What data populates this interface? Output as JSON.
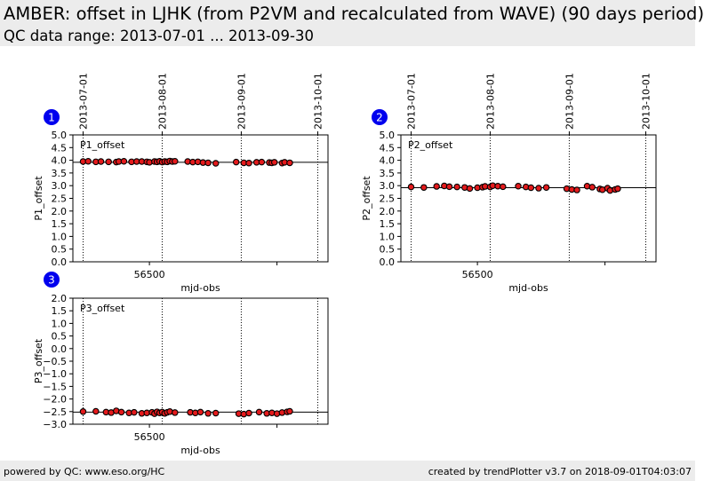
{
  "header": {
    "title": "AMBER: offset in LJHK (from P2VM and recalculated from WAVE) (90 days period)",
    "subtitle": "QC data range: 2013-07-01 ... 2013-09-30"
  },
  "footer": {
    "left": "powered by QC: www.eso.org/HC",
    "right": "created by trendPlotter v3.7 on 2018-09-01T04:03:07"
  },
  "colors": {
    "marker_fill": "#e41a1c",
    "marker_edge": "#000000",
    "badge": "#0000ee",
    "header_bg": "#ececec"
  },
  "chart_data": [
    {
      "type": "scatter",
      "panel_number": "1",
      "label": "P1_offset",
      "xlabel": "mjd-obs",
      "ylabel": "P1_offset",
      "xlim": [
        56470,
        56570
      ],
      "ylim": [
        0.0,
        5.0
      ],
      "yticks": [
        "0.0",
        "0.5",
        "1.0",
        "1.5",
        "2.0",
        "2.5",
        "3.0",
        "3.5",
        "4.0",
        "4.5",
        "5.0"
      ],
      "xtick_labels": [
        "56500"
      ],
      "date_ticks": [
        "2013-07-01",
        "2013-08-01",
        "2013-09-01",
        "2013-10-01"
      ],
      "reference_line": 3.92,
      "x": [
        56474,
        56476,
        56479,
        56481,
        56484,
        56487,
        56488,
        56490,
        56493,
        56495,
        56497,
        56499,
        56500,
        56502,
        56503,
        56504,
        56505,
        56506,
        56507,
        56508,
        56509,
        56510,
        56515,
        56517,
        56519,
        56521,
        56523,
        56526,
        56534,
        56537,
        56539,
        56542,
        56544,
        56547,
        56548,
        56549,
        56552,
        56553,
        56555
      ],
      "y": [
        3.95,
        3.96,
        3.94,
        3.95,
        3.94,
        3.93,
        3.95,
        3.96,
        3.94,
        3.95,
        3.95,
        3.94,
        3.92,
        3.95,
        3.94,
        3.96,
        3.93,
        3.95,
        3.94,
        3.97,
        3.95,
        3.96,
        3.95,
        3.93,
        3.94,
        3.91,
        3.9,
        3.88,
        3.93,
        3.9,
        3.89,
        3.92,
        3.93,
        3.91,
        3.9,
        3.92,
        3.89,
        3.92,
        3.9
      ]
    },
    {
      "type": "scatter",
      "panel_number": "2",
      "label": "P2_offset",
      "xlabel": "mjd-obs",
      "ylabel": "P2_offset",
      "xlim": [
        56470,
        56570
      ],
      "ylim": [
        0.0,
        5.0
      ],
      "yticks": [
        "0.0",
        "0.5",
        "1.0",
        "1.5",
        "2.0",
        "2.5",
        "3.0",
        "3.5",
        "4.0",
        "4.5",
        "5.0"
      ],
      "xtick_labels": [
        "56500"
      ],
      "date_ticks": [
        "2013-07-01",
        "2013-08-01",
        "2013-09-01",
        "2013-10-01"
      ],
      "reference_line": 2.92,
      "x": [
        56474,
        56479,
        56484,
        56487,
        56489,
        56492,
        56495,
        56497,
        56500,
        56502,
        56503,
        56505,
        56506,
        56508,
        56510,
        56516,
        56519,
        56521,
        56524,
        56527,
        56535,
        56537,
        56539,
        56543,
        56545,
        56548,
        56549,
        56551,
        56552,
        56554,
        56555
      ],
      "y": [
        2.95,
        2.93,
        2.97,
        2.99,
        2.96,
        2.95,
        2.93,
        2.89,
        2.92,
        2.94,
        2.97,
        2.95,
        3.0,
        2.98,
        2.96,
        2.98,
        2.95,
        2.92,
        2.9,
        2.93,
        2.88,
        2.85,
        2.83,
        2.98,
        2.94,
        2.87,
        2.84,
        2.9,
        2.81,
        2.85,
        2.88
      ]
    },
    {
      "type": "scatter",
      "panel_number": "3",
      "label": "P3_offset",
      "xlabel": "mjd-obs",
      "ylabel": "P3_offset",
      "xlim": [
        56470,
        56570
      ],
      "ylim": [
        -3.0,
        2.0
      ],
      "yticks": [
        "−3.0",
        "−2.5",
        "−2.0",
        "−1.5",
        "−1.0",
        "−0.5",
        "0.0",
        "0.5",
        "1.0",
        "1.5",
        "2.0"
      ],
      "xtick_labels": [
        "56500"
      ],
      "date_ticks": [
        "2013-07-01",
        "2013-08-01",
        "2013-09-01",
        "2013-10-01"
      ],
      "reference_line": -2.52,
      "x": [
        56474,
        56479,
        56483,
        56485,
        56487,
        56489,
        56492,
        56494,
        56497,
        56499,
        56501,
        56502,
        56503,
        56504,
        56505,
        56506,
        56507,
        56508,
        56510,
        56516,
        56518,
        56520,
        56523,
        56526,
        56535,
        56537,
        56539,
        56543,
        56546,
        56548,
        56550,
        56552,
        56554,
        56555
      ],
      "y": [
        -2.5,
        -2.49,
        -2.52,
        -2.54,
        -2.47,
        -2.52,
        -2.55,
        -2.53,
        -2.57,
        -2.55,
        -2.53,
        -2.58,
        -2.51,
        -2.55,
        -2.52,
        -2.57,
        -2.53,
        -2.5,
        -2.54,
        -2.53,
        -2.55,
        -2.52,
        -2.57,
        -2.56,
        -2.58,
        -2.6,
        -2.56,
        -2.52,
        -2.57,
        -2.55,
        -2.58,
        -2.54,
        -2.51,
        -2.49
      ]
    }
  ]
}
